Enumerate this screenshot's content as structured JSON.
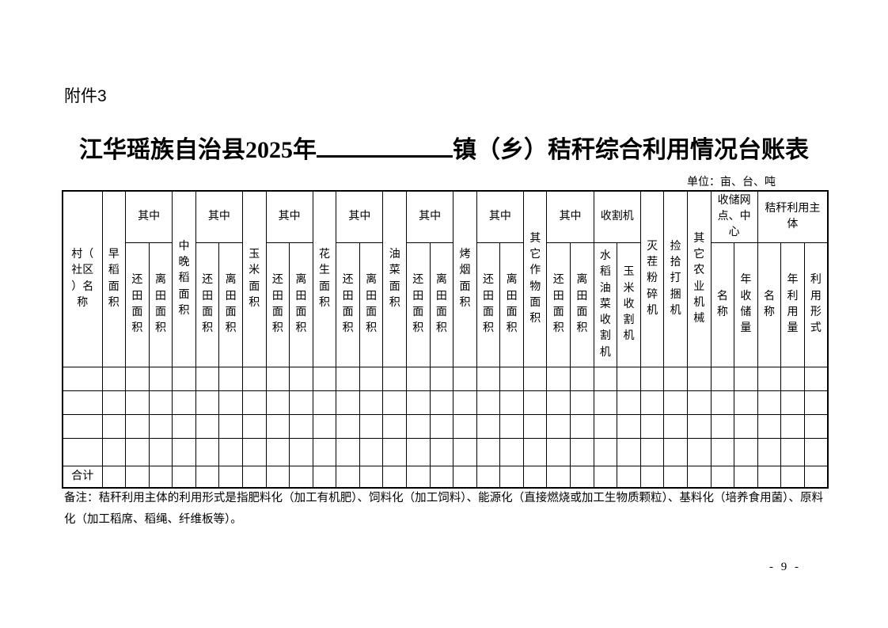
{
  "page": {
    "attachment_label": "附件3",
    "title_prefix": "江华瑶族自治县2025年",
    "title_suffix": "镇（乡）秸秆综合利用情况台账表",
    "unit_note": "单位：亩、台、吨",
    "remark": "备注：秸秆利用主体的利用形式是指肥料化（加工有机肥）、饲料化（加工饲料）、能源化（直接燃烧或加工生物质颗粒）、基料化（培养食用菌）、原料化（加工稻席、稻绳、纤维板等）。",
    "page_number": "- 9 -"
  },
  "table": {
    "labels": {
      "village": "村（社区）名称",
      "early_rice": "早稻面积",
      "among": "其中",
      "returned_field": "还田面积",
      "off_field": "离田面积",
      "mid_late_rice": "中晚稻面积",
      "corn": "玉米面积",
      "peanut": "花生面积",
      "rapeseed": "油菜面积",
      "tobacco": "烤烟面积",
      "other_crops": "其它作物面积",
      "harvester_group": "收割机",
      "rice_rape_harvester": "水稻油菜收割机",
      "corn_harvester": "玉米收割机",
      "stubble_crusher": "灭茬粉碎机",
      "baler": "捡拾打捆机",
      "other_machinery": "其它农业机械",
      "storage_group": "收储网点、中心",
      "storage_site_name": "名称",
      "annual_storage_volume": "年收储量",
      "utilization_group": "秸秆利用主体",
      "entity_name": "名称",
      "annual_utilization_volume": "年利用量",
      "utilization_form": "利用形式"
    },
    "total_label": "合计",
    "empty_data_rows": 4,
    "data_rows": []
  }
}
